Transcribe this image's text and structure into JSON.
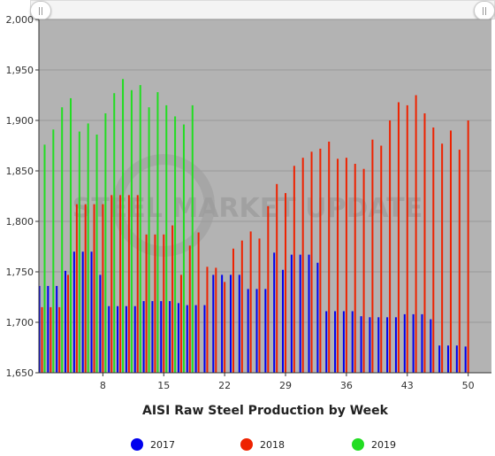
{
  "chart_data": {
    "type": "bar",
    "title": "AISI Raw Steel Production by Week",
    "xlabel": "",
    "ylabel": "",
    "ylim": [
      1650,
      2000
    ],
    "yticks": [
      "1,650",
      "1,700",
      "1,750",
      "1,800",
      "1,850",
      "1,900",
      "1,950",
      "2,000"
    ],
    "xticks": [
      "8",
      "15",
      "22",
      "29",
      "36",
      "43",
      "50"
    ],
    "x": [
      1,
      2,
      3,
      4,
      5,
      6,
      7,
      8,
      9,
      10,
      11,
      12,
      13,
      14,
      15,
      16,
      17,
      18,
      19,
      20,
      21,
      22,
      23,
      24,
      25,
      26,
      27,
      28,
      29,
      30,
      31,
      32,
      33,
      34,
      35,
      36,
      37,
      38,
      39,
      40,
      41,
      42,
      43,
      44,
      45,
      46,
      47,
      48,
      49,
      50,
      51,
      52
    ],
    "watermark": "STEEL MARKET UPDATE",
    "series": [
      {
        "name": "2017",
        "color": "#0000ee",
        "values": [
          1736,
          1736,
          1736,
          1751,
          1770,
          1770,
          1770,
          1747,
          1716,
          1716,
          1716,
          1716,
          1721,
          1721,
          1721,
          1721,
          1719,
          1717,
          1717,
          1717,
          1747,
          1747,
          1747,
          1747,
          1733,
          1733,
          1733,
          1769,
          1752,
          1767,
          1767,
          1767,
          1759,
          1711,
          1711,
          1711,
          1711,
          1706,
          1705,
          1705,
          1705,
          1705,
          1708,
          1708,
          1708,
          1703,
          1677,
          1677,
          1677,
          1676,
          null,
          null
        ]
      },
      {
        "name": "2018",
        "color": "#ee2200",
        "values": [
          1715,
          1715,
          1715,
          1747,
          1817,
          1817,
          1817,
          1817,
          1826,
          1826,
          1826,
          1826,
          1787,
          1787,
          1787,
          1796,
          1747,
          1776,
          1789,
          1755,
          1754,
          1740,
          1773,
          1781,
          1790,
          1783,
          1815,
          1837,
          1828,
          1855,
          1863,
          1869,
          1872,
          1879,
          1862,
          1863,
          1857,
          1852,
          1881,
          1875,
          1900,
          1918,
          1915,
          1925,
          1907,
          1893,
          1877,
          1890,
          1871,
          1900,
          null,
          null
        ]
      },
      {
        "name": "2019",
        "color": "#22dd22",
        "values": [
          1876,
          1891,
          1913,
          1922,
          1889,
          1897,
          1886,
          1907,
          1927,
          1941,
          1930,
          1935,
          1913,
          1928,
          1915,
          1904,
          1896,
          1915,
          null,
          null,
          null,
          null,
          null,
          null,
          null,
          null,
          null,
          null,
          null,
          null,
          null,
          null,
          null,
          null,
          null,
          null,
          null,
          null,
          null,
          null,
          null,
          null,
          null,
          null,
          null,
          null,
          null,
          null,
          null,
          null,
          null,
          null
        ]
      }
    ],
    "legend_position": "bottom",
    "grid": true
  }
}
